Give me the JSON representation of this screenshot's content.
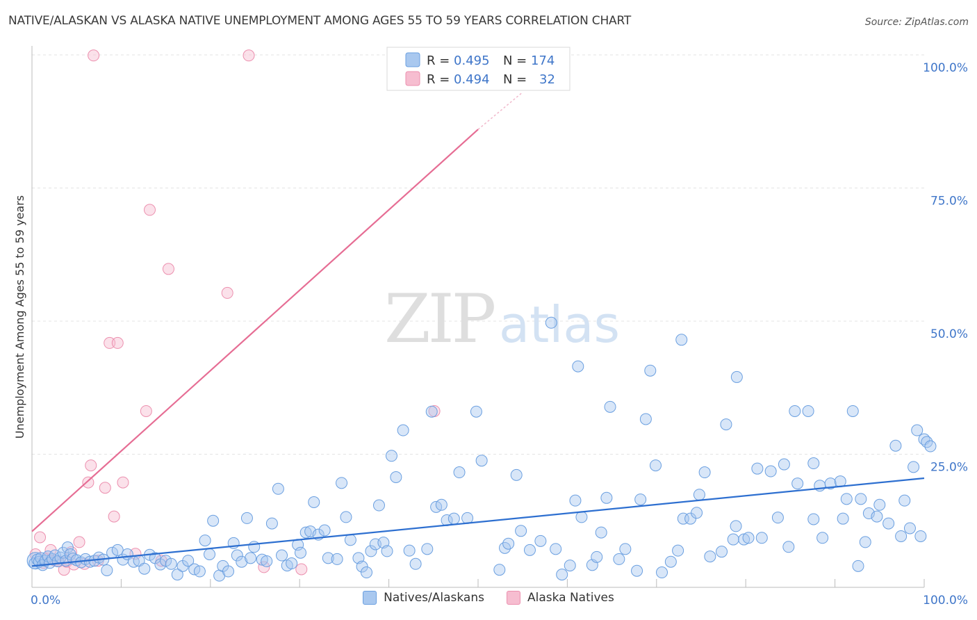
{
  "header": {
    "title": "NATIVE/ALASKAN VS ALASKA NATIVE UNEMPLOYMENT AMONG AGES 55 TO 59 YEARS CORRELATION CHART",
    "source": "Source: ZipAtlas.com"
  },
  "watermark": {
    "zip": "ZIP",
    "atlas": "atlas"
  },
  "colors": {
    "blue_fill": "#a9c8ef",
    "blue_stroke": "#6a9fe0",
    "blue_line": "#2d6fd0",
    "pink_fill": "#f6bdd0",
    "pink_stroke": "#ec8fae",
    "pink_line": "#e66d94",
    "axis_text": "#3f76c9",
    "grid": "#e3e3e3"
  },
  "legend_top": {
    "rows": [
      {
        "series": "Natives/Alaskans",
        "r_label": "R = ",
        "r_value": "0.495",
        "n_label": "N = ",
        "n_value": "174"
      },
      {
        "series": "Alaska Natives",
        "r_label": "R = ",
        "r_value": "0.494",
        "n_label": "N = ",
        "n_value": "32"
      }
    ]
  },
  "legend_bottom": {
    "items": [
      "Natives/Alaskans",
      "Alaska Natives"
    ]
  },
  "chart_data": {
    "type": "scatter",
    "title": "NATIVE/ALASKAN VS ALASKA NATIVE UNEMPLOYMENT AMONG AGES 55 TO 59 YEARS CORRELATION CHART",
    "xlabel": "",
    "ylabel": "Unemployment Among Ages 55 to 59 years",
    "xlim": [
      0,
      100
    ],
    "ylim": [
      0,
      100
    ],
    "x_tick_labels": [
      {
        "value": 0,
        "label": "0.0%"
      },
      {
        "value": 100,
        "label": "100.0%"
      }
    ],
    "y_tick_labels": [
      {
        "value": 25,
        "label": "25.0%"
      },
      {
        "value": 50,
        "label": "50.0%"
      },
      {
        "value": 75,
        "label": "75.0%"
      },
      {
        "value": 100,
        "label": "100.0%"
      }
    ],
    "grid": true,
    "series": [
      {
        "name": "Natives/Alaskans",
        "R": 0.495,
        "N": 174,
        "trendline": {
          "x": [
            0,
            100
          ],
          "y": [
            4.0,
            20.5
          ]
        },
        "points": [
          [
            0.3,
            4.5
          ],
          [
            0.6,
            5.2
          ],
          [
            0.8,
            4.8
          ],
          [
            1.0,
            5.5
          ],
          [
            1.2,
            4.2
          ],
          [
            1.5,
            5.0
          ],
          [
            1.8,
            5.8
          ],
          [
            2.0,
            4.6
          ],
          [
            2.3,
            5.3
          ],
          [
            2.6,
            6.0
          ],
          [
            2.9,
            4.9
          ],
          [
            3.2,
            5.6
          ],
          [
            3.5,
            6.5
          ],
          [
            3.8,
            5.0
          ],
          [
            4.0,
            7.5
          ],
          [
            4.3,
            6.2
          ],
          [
            4.6,
            5.4
          ],
          [
            5.0,
            5.1
          ],
          [
            5.5,
            4.7
          ],
          [
            6.0,
            5.3
          ],
          [
            6.5,
            4.8
          ],
          [
            7.0,
            5.0
          ],
          [
            7.5,
            5.6
          ],
          [
            8.0,
            5.2
          ],
          [
            8.4,
            3.2
          ],
          [
            9.0,
            6.5
          ],
          [
            9.6,
            7.0
          ],
          [
            10.2,
            5.2
          ],
          [
            10.7,
            6.2
          ],
          [
            11.4,
            4.8
          ],
          [
            12.0,
            5.0
          ],
          [
            12.6,
            3.5
          ],
          [
            13.2,
            6.1
          ],
          [
            13.8,
            5.5
          ],
          [
            14.4,
            4.3
          ],
          [
            15.0,
            5.0
          ],
          [
            15.6,
            4.4
          ],
          [
            16.3,
            2.4
          ],
          [
            16.9,
            4.0
          ],
          [
            17.5,
            5.0
          ],
          [
            18.2,
            3.4
          ],
          [
            18.8,
            3.0
          ],
          [
            19.4,
            8.8
          ],
          [
            19.9,
            6.2
          ],
          [
            20.3,
            12.5
          ],
          [
            21.0,
            2.2
          ],
          [
            21.4,
            4.0
          ],
          [
            22.0,
            3.0
          ],
          [
            22.6,
            8.3
          ],
          [
            23.0,
            6.0
          ],
          [
            23.5,
            4.8
          ],
          [
            24.1,
            13.0
          ],
          [
            24.5,
            5.5
          ],
          [
            24.9,
            7.6
          ],
          [
            25.8,
            5.2
          ],
          [
            26.3,
            4.9
          ],
          [
            26.9,
            12.0
          ],
          [
            27.6,
            18.5
          ],
          [
            28.0,
            6.0
          ],
          [
            28.6,
            4.1
          ],
          [
            29.1,
            4.5
          ],
          [
            29.8,
            8.0
          ],
          [
            30.1,
            6.5
          ],
          [
            30.7,
            10.3
          ],
          [
            31.2,
            10.5
          ],
          [
            32.1,
            9.9
          ],
          [
            31.6,
            16.0
          ],
          [
            32.8,
            10.7
          ],
          [
            33.2,
            5.5
          ],
          [
            34.2,
            5.3
          ],
          [
            34.7,
            19.6
          ],
          [
            35.2,
            13.2
          ],
          [
            35.7,
            8.9
          ],
          [
            36.6,
            5.5
          ],
          [
            37.0,
            3.9
          ],
          [
            37.5,
            2.8
          ],
          [
            38.0,
            6.8
          ],
          [
            38.5,
            8.1
          ],
          [
            38.9,
            15.4
          ],
          [
            39.4,
            8.4
          ],
          [
            39.8,
            6.8
          ],
          [
            40.3,
            24.7
          ],
          [
            40.8,
            20.7
          ],
          [
            41.6,
            29.5
          ],
          [
            42.3,
            6.9
          ],
          [
            43.0,
            4.4
          ],
          [
            44.3,
            7.2
          ],
          [
            44.8,
            33.0
          ],
          [
            45.3,
            15.1
          ],
          [
            45.9,
            15.5
          ],
          [
            46.5,
            12.6
          ],
          [
            47.3,
            12.9
          ],
          [
            47.9,
            21.6
          ],
          [
            48.8,
            13.0
          ],
          [
            49.8,
            33.0
          ],
          [
            50.4,
            23.8
          ],
          [
            52.4,
            3.3
          ],
          [
            53.0,
            7.4
          ],
          [
            53.4,
            8.2
          ],
          [
            54.3,
            21.1
          ],
          [
            54.8,
            10.6
          ],
          [
            55.8,
            7.0
          ],
          [
            57.0,
            8.7
          ],
          [
            58.2,
            49.7
          ],
          [
            58.7,
            7.2
          ],
          [
            59.4,
            2.4
          ],
          [
            60.3,
            4.1
          ],
          [
            60.9,
            16.3
          ],
          [
            61.2,
            41.5
          ],
          [
            61.6,
            13.2
          ],
          [
            62.8,
            4.2
          ],
          [
            63.3,
            5.7
          ],
          [
            63.8,
            10.3
          ],
          [
            64.4,
            16.8
          ],
          [
            64.8,
            33.9
          ],
          [
            65.8,
            5.3
          ],
          [
            66.5,
            7.2
          ],
          [
            67.8,
            3.1
          ],
          [
            68.2,
            16.5
          ],
          [
            68.8,
            31.6
          ],
          [
            69.3,
            40.7
          ],
          [
            69.9,
            22.9
          ],
          [
            70.6,
            2.8
          ],
          [
            71.6,
            4.8
          ],
          [
            72.4,
            6.9
          ],
          [
            72.8,
            46.5
          ],
          [
            73.0,
            12.9
          ],
          [
            73.8,
            12.9
          ],
          [
            74.5,
            14.0
          ],
          [
            74.8,
            17.4
          ],
          [
            75.4,
            21.6
          ],
          [
            76.0,
            5.8
          ],
          [
            77.3,
            6.7
          ],
          [
            77.8,
            30.6
          ],
          [
            78.6,
            9.0
          ],
          [
            78.9,
            11.5
          ],
          [
            79.0,
            39.5
          ],
          [
            79.8,
            9.0
          ],
          [
            80.3,
            9.3
          ],
          [
            81.3,
            22.3
          ],
          [
            81.8,
            9.3
          ],
          [
            82.8,
            21.8
          ],
          [
            83.6,
            13.1
          ],
          [
            84.3,
            23.1
          ],
          [
            84.8,
            7.6
          ],
          [
            85.5,
            33.1
          ],
          [
            85.8,
            19.5
          ],
          [
            87.0,
            33.1
          ],
          [
            87.6,
            12.8
          ],
          [
            87.6,
            23.3
          ],
          [
            88.6,
            9.3
          ],
          [
            88.3,
            19.1
          ],
          [
            89.5,
            19.5
          ],
          [
            90.6,
            19.9
          ],
          [
            90.9,
            12.9
          ],
          [
            91.3,
            16.6
          ],
          [
            92.0,
            33.1
          ],
          [
            92.6,
            4.0
          ],
          [
            92.9,
            16.6
          ],
          [
            93.4,
            8.5
          ],
          [
            93.8,
            13.9
          ],
          [
            94.7,
            13.3
          ],
          [
            95.0,
            15.5
          ],
          [
            96.0,
            12.0
          ],
          [
            96.8,
            26.6
          ],
          [
            97.4,
            9.6
          ],
          [
            97.8,
            16.3
          ],
          [
            98.4,
            11.1
          ],
          [
            98.8,
            22.6
          ],
          [
            99.2,
            29.5
          ],
          [
            99.6,
            9.6
          ],
          [
            100.0,
            27.8
          ],
          [
            100.3,
            27.3
          ],
          [
            100.7,
            26.5
          ]
        ]
      },
      {
        "name": "Alaska Natives",
        "R": 0.494,
        "N": 32,
        "trendline": {
          "x": [
            0,
            50
          ],
          "y": [
            10.5,
            86.0
          ]
        },
        "trendline_dashed": {
          "x": [
            50,
            55
          ],
          "y": [
            86.0,
            93.0
          ]
        },
        "points": [
          [
            0.4,
            6.2
          ],
          [
            0.9,
            9.4
          ],
          [
            1.3,
            4.6
          ],
          [
            1.7,
            5.4
          ],
          [
            2.1,
            7.0
          ],
          [
            2.6,
            5.0
          ],
          [
            3.0,
            4.9
          ],
          [
            3.6,
            3.3
          ],
          [
            3.9,
            4.8
          ],
          [
            4.4,
            6.6
          ],
          [
            4.7,
            4.3
          ],
          [
            5.3,
            8.5
          ],
          [
            5.9,
            4.4
          ],
          [
            6.3,
            19.7
          ],
          [
            6.6,
            22.9
          ],
          [
            6.9,
            99.9
          ],
          [
            7.4,
            5.0
          ],
          [
            8.2,
            18.7
          ],
          [
            8.7,
            45.9
          ],
          [
            9.2,
            13.3
          ],
          [
            9.6,
            45.9
          ],
          [
            10.2,
            19.7
          ],
          [
            11.6,
            6.3
          ],
          [
            12.8,
            33.1
          ],
          [
            13.2,
            70.9
          ],
          [
            14.5,
            5.0
          ],
          [
            15.3,
            59.8
          ],
          [
            21.9,
            55.3
          ],
          [
            24.3,
            99.9
          ],
          [
            26.0,
            3.8
          ],
          [
            30.2,
            3.4
          ],
          [
            45.1,
            33.1
          ]
        ]
      }
    ]
  }
}
